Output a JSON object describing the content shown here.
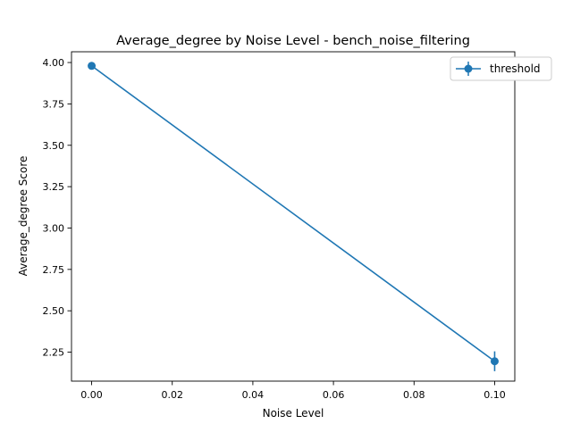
{
  "chart_data": {
    "type": "line",
    "title": "Average_degree by Noise Level - bench_noise_filtering",
    "xlabel": "Noise Level",
    "ylabel": "Average_degree Score",
    "xlim": [
      -0.005,
      0.105
    ],
    "ylim": [
      2.075,
      4.065
    ],
    "xticks": [
      0.0,
      0.02,
      0.04,
      0.06,
      0.08,
      0.1
    ],
    "xtick_labels": [
      "0.00",
      "0.02",
      "0.04",
      "0.06",
      "0.08",
      "0.10"
    ],
    "yticks": [
      2.25,
      2.5,
      2.75,
      3.0,
      3.25,
      3.5,
      3.75,
      4.0
    ],
    "ytick_labels": [
      "2.25",
      "2.50",
      "2.75",
      "3.00",
      "3.25",
      "3.50",
      "3.75",
      "4.00"
    ],
    "grid": false,
    "legend_position": "top-right",
    "series": [
      {
        "name": "threshold",
        "color": "#1f77b4",
        "x": [
          0.0,
          0.1
        ],
        "y": [
          3.98,
          2.195
        ],
        "yerr": [
          0.0,
          0.06
        ]
      }
    ]
  }
}
